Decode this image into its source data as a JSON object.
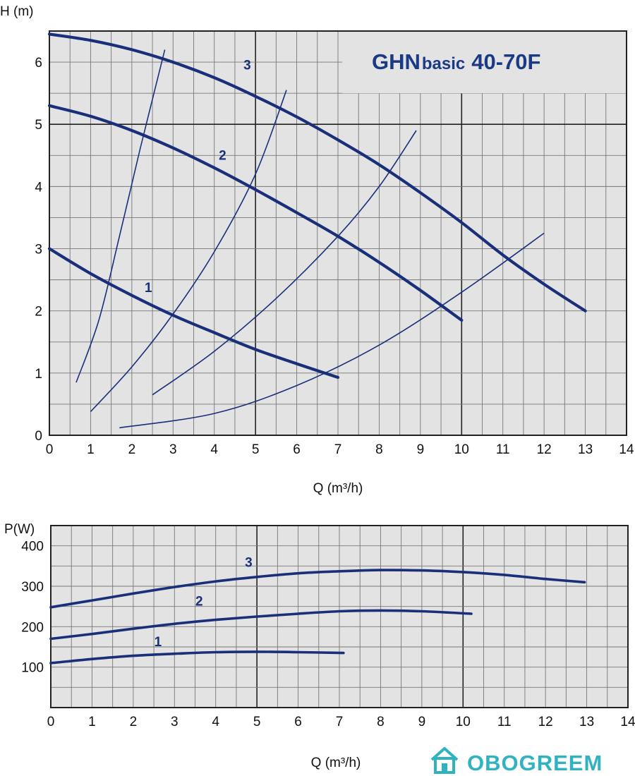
{
  "colors": {
    "plot_bg": "#e3e3e3",
    "grid_minor": "#777777",
    "grid_major": "#222222",
    "curve": "#1a2f7a",
    "title": "#1b3a86",
    "watermark": "#2fb3c0"
  },
  "chart_data": [
    {
      "type": "line",
      "title_main": "GHN",
      "title_sub": "basic",
      "title_model": "40-70F",
      "xlabel": "Q (m³/h)",
      "ylabel": "H (m)",
      "xlim": [
        0,
        14
      ],
      "ylim": [
        0,
        6.5
      ],
      "xticks": [
        "0",
        "1",
        "2",
        "3",
        "4",
        "5",
        "6",
        "7",
        "8",
        "9",
        "10",
        "11",
        "12",
        "13",
        "14"
      ],
      "yticks": [
        "0",
        "1",
        "2",
        "3",
        "4",
        "5",
        "6"
      ],
      "grid": true,
      "series": [
        {
          "name": "1",
          "x": [
            0,
            1,
            2,
            3,
            4,
            5,
            6,
            7
          ],
          "y": [
            3.0,
            2.6,
            2.25,
            1.93,
            1.65,
            1.38,
            1.15,
            0.93
          ]
        },
        {
          "name": "2",
          "x": [
            0,
            1,
            2,
            3,
            4,
            5,
            6,
            7,
            8,
            9,
            10
          ],
          "y": [
            5.3,
            5.13,
            4.9,
            4.62,
            4.3,
            3.95,
            3.58,
            3.2,
            2.78,
            2.33,
            1.85
          ]
        },
        {
          "name": "3",
          "x": [
            0,
            1,
            2,
            3,
            4,
            5,
            6,
            7,
            8,
            9,
            10,
            11,
            12,
            13
          ],
          "y": [
            6.45,
            6.35,
            6.2,
            6.0,
            5.75,
            5.45,
            5.12,
            4.75,
            4.35,
            3.9,
            3.42,
            2.9,
            2.43,
            2.0
          ]
        }
      ],
      "system_curves": [
        {
          "x": [
            0.65,
            1.2,
            1.7,
            2.2,
            2.8
          ],
          "y": [
            0.85,
            1.85,
            3.2,
            4.6,
            6.2
          ]
        },
        {
          "x": [
            1.0,
            2.0,
            3.0,
            4.0,
            5.0,
            5.75
          ],
          "y": [
            0.38,
            1.1,
            1.95,
            2.95,
            4.2,
            5.55
          ]
        },
        {
          "x": [
            2.5,
            4.0,
            5.5,
            7.0,
            8.0,
            8.9
          ],
          "y": [
            0.65,
            1.35,
            2.2,
            3.2,
            4.0,
            4.9
          ]
        },
        {
          "x": [
            1.7,
            4.0,
            6.0,
            8.0,
            10.0,
            12.0
          ],
          "y": [
            0.12,
            0.35,
            0.8,
            1.45,
            2.3,
            3.25
          ]
        }
      ],
      "curve_labels": [
        {
          "text": "1",
          "x": 2.4,
          "y": 2.3
        },
        {
          "text": "2",
          "x": 4.2,
          "y": 4.43
        },
        {
          "text": "3",
          "x": 4.8,
          "y": 5.88
        }
      ]
    },
    {
      "type": "line",
      "xlabel": "Q (m³/h)",
      "ylabel": "P(W)",
      "xlim": [
        0,
        14
      ],
      "ylim": [
        0,
        450
      ],
      "xticks": [
        "0",
        "1",
        "2",
        "3",
        "4",
        "5",
        "6",
        "7",
        "8",
        "9",
        "10",
        "11",
        "12",
        "13",
        "14"
      ],
      "yticks": [
        "100",
        "200",
        "300",
        "400"
      ],
      "grid": true,
      "series": [
        {
          "name": "1",
          "x": [
            0,
            1,
            2,
            3,
            4,
            5,
            6,
            7.1
          ],
          "y": [
            110,
            120,
            128,
            133,
            137,
            138,
            137,
            135
          ]
        },
        {
          "name": "2",
          "x": [
            0,
            1,
            2,
            3,
            4,
            5,
            6,
            7,
            8,
            9,
            10.2
          ],
          "y": [
            170,
            182,
            195,
            207,
            217,
            225,
            232,
            238,
            240,
            238,
            232
          ]
        },
        {
          "name": "3",
          "x": [
            0,
            1,
            2,
            3,
            4,
            5,
            6,
            7,
            8,
            9,
            10,
            11,
            12,
            12.95
          ],
          "y": [
            248,
            265,
            282,
            298,
            312,
            323,
            332,
            337,
            340,
            339,
            335,
            328,
            318,
            310
          ]
        }
      ],
      "curve_labels": [
        {
          "text": "1",
          "x": 2.6,
          "y": 152
        },
        {
          "text": "2",
          "x": 3.6,
          "y": 252
        },
        {
          "text": "3",
          "x": 4.8,
          "y": 348
        }
      ]
    }
  ],
  "watermark": {
    "text": "OBOGREEM",
    "icon": "house-icon"
  }
}
